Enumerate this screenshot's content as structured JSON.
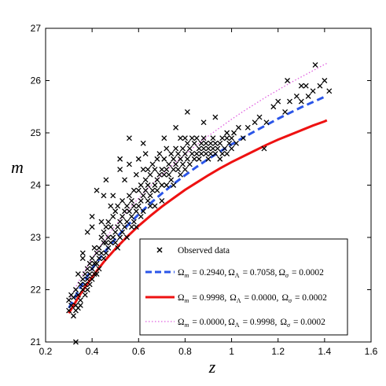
{
  "chart_data": {
    "type": "scatter",
    "xlabel": "z",
    "ylabel": "m",
    "xlim": [
      0.2,
      1.6
    ],
    "ylim": [
      21,
      27
    ],
    "xticks": [
      "0.2",
      "0.4",
      "0.6",
      "0.8",
      "1",
      "1.2",
      "1.4",
      "1.6"
    ],
    "yticks": [
      "21",
      "22",
      "23",
      "24",
      "25",
      "26",
      "27"
    ],
    "grid": false,
    "legend_position": "bottom-right",
    "observed": {
      "name": "Observed data",
      "marker": "x",
      "color": "#000000",
      "points": [
        [
          0.3,
          21.8
        ],
        [
          0.3,
          21.6
        ],
        [
          0.31,
          21.9
        ],
        [
          0.31,
          21.7
        ],
        [
          0.32,
          21.5
        ],
        [
          0.32,
          21.85
        ],
        [
          0.33,
          21.7
        ],
        [
          0.33,
          21.6
        ],
        [
          0.33,
          22.0
        ],
        [
          0.34,
          21.65
        ],
        [
          0.34,
          21.9
        ],
        [
          0.34,
          22.3
        ],
        [
          0.35,
          22.1
        ],
        [
          0.35,
          21.8
        ],
        [
          0.35,
          21.7
        ],
        [
          0.36,
          22.2
        ],
        [
          0.36,
          22.0
        ],
        [
          0.36,
          22.6
        ],
        [
          0.36,
          22.7
        ],
        [
          0.37,
          22.3
        ],
        [
          0.37,
          22.1
        ],
        [
          0.37,
          21.9
        ],
        [
          0.38,
          22.4
        ],
        [
          0.38,
          22.2
        ],
        [
          0.38,
          22.0
        ],
        [
          0.38,
          23.1
        ],
        [
          0.39,
          22.5
        ],
        [
          0.39,
          22.3
        ],
        [
          0.39,
          22.1
        ],
        [
          0.4,
          22.6
        ],
        [
          0.4,
          22.4
        ],
        [
          0.4,
          22.2
        ],
        [
          0.4,
          23.2
        ],
        [
          0.4,
          23.4
        ],
        [
          0.41,
          22.5
        ],
        [
          0.41,
          22.3
        ],
        [
          0.41,
          22.8
        ],
        [
          0.42,
          22.7
        ],
        [
          0.42,
          22.5
        ],
        [
          0.42,
          22.3
        ],
        [
          0.42,
          23.9
        ],
        [
          0.43,
          22.8
        ],
        [
          0.43,
          22.6
        ],
        [
          0.43,
          22.4
        ],
        [
          0.44,
          23.0
        ],
        [
          0.44,
          22.7
        ],
        [
          0.44,
          23.3
        ],
        [
          0.45,
          23.1
        ],
        [
          0.45,
          22.9
        ],
        [
          0.45,
          22.6
        ],
        [
          0.45,
          23.8
        ],
        [
          0.46,
          23.2
        ],
        [
          0.46,
          22.9
        ],
        [
          0.46,
          22.7
        ],
        [
          0.47,
          23.0
        ],
        [
          0.47,
          23.3
        ],
        [
          0.47,
          22.8
        ],
        [
          0.48,
          23.2
        ],
        [
          0.48,
          23.6
        ],
        [
          0.48,
          22.9
        ],
        [
          0.49,
          23.0
        ],
        [
          0.49,
          23.4
        ],
        [
          0.49,
          23.8
        ],
        [
          0.5,
          23.1
        ],
        [
          0.5,
          23.5
        ],
        [
          0.5,
          22.9
        ],
        [
          0.51,
          23.2
        ],
        [
          0.51,
          23.6
        ],
        [
          0.51,
          22.8
        ],
        [
          0.52,
          23.3
        ],
        [
          0.52,
          23.0
        ],
        [
          0.52,
          24.3
        ],
        [
          0.53,
          23.4
        ],
        [
          0.53,
          23.1
        ],
        [
          0.53,
          23.7
        ],
        [
          0.54,
          23.2
        ],
        [
          0.54,
          23.5
        ],
        [
          0.54,
          24.1
        ],
        [
          0.55,
          23.3
        ],
        [
          0.55,
          23.6
        ],
        [
          0.55,
          23.0
        ],
        [
          0.56,
          23.5
        ],
        [
          0.56,
          23.8
        ],
        [
          0.56,
          24.4
        ],
        [
          0.57,
          23.4
        ],
        [
          0.57,
          23.7
        ],
        [
          0.57,
          23.2
        ],
        [
          0.58,
          23.6
        ],
        [
          0.58,
          23.9
        ],
        [
          0.58,
          23.3
        ],
        [
          0.59,
          23.5
        ],
        [
          0.59,
          24.2
        ],
        [
          0.59,
          23.2
        ],
        [
          0.6,
          23.6
        ],
        [
          0.6,
          23.9
        ],
        [
          0.6,
          24.5
        ],
        [
          0.61,
          23.7
        ],
        [
          0.61,
          23.4
        ],
        [
          0.61,
          24.0
        ],
        [
          0.62,
          23.8
        ],
        [
          0.62,
          24.3
        ],
        [
          0.62,
          23.5
        ],
        [
          0.63,
          23.9
        ],
        [
          0.63,
          24.1
        ],
        [
          0.63,
          24.6
        ],
        [
          0.64,
          23.7
        ],
        [
          0.64,
          24.0
        ],
        [
          0.64,
          24.3
        ],
        [
          0.65,
          23.8
        ],
        [
          0.65,
          24.2
        ],
        [
          0.65,
          23.6
        ],
        [
          0.66,
          23.9
        ],
        [
          0.66,
          24.4
        ],
        [
          0.67,
          24.0
        ],
        [
          0.67,
          24.3
        ],
        [
          0.67,
          23.6
        ],
        [
          0.68,
          24.1
        ],
        [
          0.68,
          24.5
        ],
        [
          0.68,
          23.9
        ],
        [
          0.69,
          24.2
        ],
        [
          0.69,
          24.6
        ],
        [
          0.7,
          24.0
        ],
        [
          0.7,
          24.3
        ],
        [
          0.7,
          23.7
        ],
        [
          0.71,
          24.2
        ],
        [
          0.71,
          24.5
        ],
        [
          0.72,
          24.3
        ],
        [
          0.72,
          24.0
        ],
        [
          0.72,
          24.7
        ],
        [
          0.73,
          24.2
        ],
        [
          0.73,
          24.4
        ],
        [
          0.74,
          24.1
        ],
        [
          0.74,
          24.6
        ],
        [
          0.75,
          24.3
        ],
        [
          0.75,
          24.5
        ],
        [
          0.75,
          24.0
        ],
        [
          0.76,
          24.4
        ],
        [
          0.76,
          24.7
        ],
        [
          0.77,
          24.3
        ],
        [
          0.77,
          24.6
        ],
        [
          0.78,
          24.5
        ],
        [
          0.78,
          24.2
        ],
        [
          0.78,
          24.9
        ],
        [
          0.79,
          24.4
        ],
        [
          0.79,
          24.7
        ],
        [
          0.8,
          24.3
        ],
        [
          0.8,
          24.6
        ],
        [
          0.8,
          24.9
        ],
        [
          0.81,
          24.5
        ],
        [
          0.81,
          24.8
        ],
        [
          0.82,
          24.4
        ],
        [
          0.82,
          24.7
        ],
        [
          0.83,
          24.6
        ],
        [
          0.83,
          24.9
        ],
        [
          0.84,
          24.5
        ],
        [
          0.84,
          24.8
        ],
        [
          0.85,
          24.6
        ],
        [
          0.85,
          24.9
        ],
        [
          0.86,
          24.7
        ],
        [
          0.86,
          24.5
        ],
        [
          0.87,
          24.8
        ],
        [
          0.87,
          24.6
        ],
        [
          0.88,
          24.7
        ],
        [
          0.88,
          24.9
        ],
        [
          0.89,
          24.6
        ],
        [
          0.89,
          24.8
        ],
        [
          0.9,
          24.7
        ],
        [
          0.9,
          24.5
        ],
        [
          0.91,
          24.8
        ],
        [
          0.91,
          24.6
        ],
        [
          0.92,
          24.9
        ],
        [
          0.92,
          24.7
        ],
        [
          0.93,
          24.6
        ],
        [
          0.93,
          24.8
        ],
        [
          0.94,
          24.7
        ],
        [
          0.95,
          24.5
        ],
        [
          0.95,
          24.8
        ],
        [
          0.96,
          24.6
        ],
        [
          0.96,
          24.9
        ],
        [
          0.97,
          24.7
        ],
        [
          0.98,
          24.9
        ],
        [
          0.98,
          24.6
        ],
        [
          0.99,
          24.8
        ],
        [
          1.0,
          24.9
        ],
        [
          1.0,
          24.7
        ],
        [
          1.01,
          25.0
        ],
        [
          1.02,
          24.8
        ],
        [
          1.03,
          25.1
        ],
        [
          1.05,
          24.9
        ],
        [
          1.07,
          25.1
        ],
        [
          1.1,
          25.2
        ],
        [
          1.12,
          25.3
        ],
        [
          1.15,
          25.2
        ],
        [
          1.18,
          25.5
        ],
        [
          1.2,
          25.6
        ],
        [
          1.23,
          25.4
        ],
        [
          1.25,
          25.6
        ],
        [
          1.28,
          25.7
        ],
        [
          1.3,
          25.6
        ],
        [
          1.32,
          25.9
        ],
        [
          1.33,
          25.7
        ],
        [
          1.35,
          25.8
        ],
        [
          1.38,
          25.9
        ],
        [
          1.4,
          26.0
        ],
        [
          1.42,
          25.8
        ],
        [
          1.36,
          26.3
        ],
        [
          1.3,
          25.9
        ],
        [
          0.33,
          21.0
        ],
        [
          0.62,
          24.8
        ],
        [
          0.76,
          25.1
        ],
        [
          0.88,
          25.2
        ],
        [
          0.93,
          25.3
        ],
        [
          1.14,
          24.7
        ],
        [
          1.24,
          26.0
        ],
        [
          0.52,
          24.5
        ],
        [
          0.46,
          24.1
        ],
        [
          0.56,
          24.9
        ],
        [
          0.71,
          24.9
        ],
        [
          0.81,
          25.4
        ],
        [
          0.98,
          25.0
        ]
      ]
    },
    "models": [
      {
        "name": "Ω_m  = 0.2940, Ω_Λ  = 0.7058, Ω_σ  = 0.0002",
        "style": "dashed",
        "color": "#2a55e8",
        "x": [
          0.3,
          0.35,
          0.4,
          0.45,
          0.5,
          0.55,
          0.6,
          0.65,
          0.7,
          0.75,
          0.8,
          0.85,
          0.9,
          0.95,
          1.0,
          1.05,
          1.1,
          1.15,
          1.2,
          1.25,
          1.3,
          1.35,
          1.4,
          1.41
        ],
        "y": [
          21.65,
          22.05,
          22.4,
          22.7,
          22.97,
          23.22,
          23.44,
          23.65,
          23.84,
          24.02,
          24.19,
          24.35,
          24.5,
          24.64,
          24.78,
          24.91,
          25.03,
          25.15,
          25.27,
          25.38,
          25.49,
          25.59,
          25.69,
          25.71
        ]
      },
      {
        "name": "Ω_m  = 0.9998, Ω_Λ  = 0.0000, Ω_σ  = 0.0002",
        "style": "solid",
        "color": "#ee1111",
        "x": [
          0.3,
          0.35,
          0.4,
          0.45,
          0.5,
          0.55,
          0.6,
          0.65,
          0.7,
          0.75,
          0.8,
          0.85,
          0.9,
          0.95,
          1.0,
          1.05,
          1.1,
          1.15,
          1.2,
          1.25,
          1.3,
          1.35,
          1.4,
          1.41
        ],
        "y": [
          21.55,
          21.92,
          22.24,
          22.53,
          22.78,
          23.01,
          23.22,
          23.41,
          23.59,
          23.75,
          23.91,
          24.05,
          24.19,
          24.32,
          24.44,
          24.55,
          24.66,
          24.77,
          24.87,
          24.96,
          25.05,
          25.14,
          25.22,
          25.24
        ]
      },
      {
        "name": "Ω_m  = 0.0000, Ω_Λ  = 0.9998, Ω_σ  = 0.0002",
        "style": "dotted",
        "color": "#e060e0",
        "x": [
          0.3,
          0.35,
          0.4,
          0.45,
          0.5,
          0.55,
          0.6,
          0.65,
          0.7,
          0.75,
          0.8,
          0.85,
          0.9,
          0.95,
          1.0,
          1.05,
          1.1,
          1.15,
          1.2,
          1.25,
          1.3,
          1.35,
          1.4,
          1.41
        ],
        "y": [
          21.8,
          22.22,
          22.6,
          22.93,
          23.23,
          23.5,
          23.75,
          23.98,
          24.2,
          24.4,
          24.59,
          24.77,
          24.94,
          25.1,
          25.26,
          25.41,
          25.55,
          25.69,
          25.82,
          25.95,
          26.07,
          26.19,
          26.31,
          26.33
        ]
      }
    ]
  },
  "legend": {
    "observed_label": "Observed data",
    "rows": [
      {
        "omega_m": "= 0.2940,",
        "omega_l": "= 0.7058,",
        "omega_s": "= 0.0002"
      },
      {
        "omega_m": "= 0.9998,",
        "omega_l": "= 0.0000,",
        "omega_s": "= 0.0002"
      },
      {
        "omega_m": "= 0.0000,",
        "omega_l": "= 0.9998,",
        "omega_s": "= 0.0002"
      }
    ]
  }
}
